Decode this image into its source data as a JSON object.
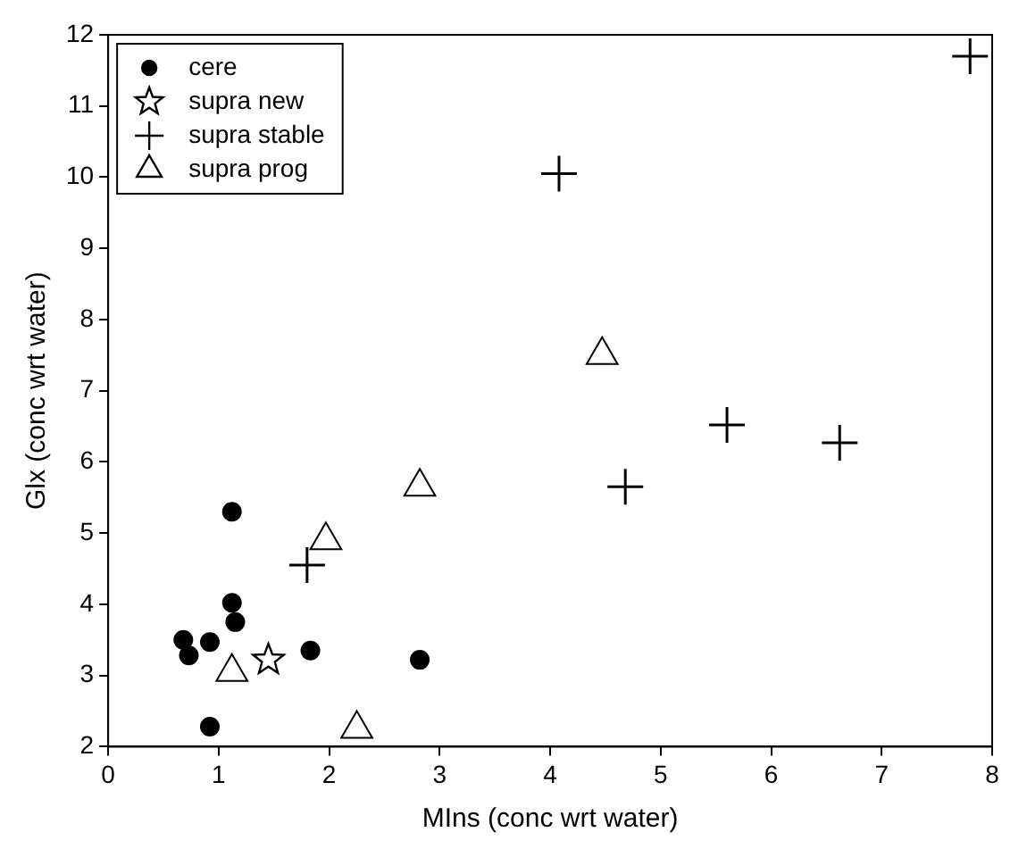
{
  "chart_data": {
    "type": "scatter",
    "xlabel": "MIns (conc wrt water)",
    "ylabel": "Glx (conc wrt water)",
    "xlim": [
      0,
      8
    ],
    "xticks": [
      0,
      1,
      2,
      3,
      4,
      5,
      6,
      7,
      8
    ],
    "ylim": [
      2,
      12
    ],
    "yticks": [
      2,
      3,
      4,
      5,
      6,
      7,
      8,
      9,
      10,
      11,
      12
    ],
    "grid": false,
    "legend": "top left",
    "series": [
      {
        "name": "cere",
        "color": "#000000",
        "marker": "circle",
        "x": [
          0.68,
          0.73,
          0.92,
          1.12,
          1.15,
          1.12,
          0.92,
          1.83,
          2.82
        ],
        "values": [
          3.5,
          3.28,
          3.47,
          4.02,
          3.75,
          5.3,
          2.28,
          3.35,
          3.22
        ]
      },
      {
        "name": "supra new",
        "color": "#000000",
        "marker": "star",
        "x": [
          1.45
        ],
        "values": [
          3.22
        ]
      },
      {
        "name": "supra stable",
        "color": "#000000",
        "marker": "cross",
        "x": [
          1.8,
          4.08,
          4.68,
          5.6,
          6.62,
          7.8
        ],
        "values": [
          4.55,
          10.05,
          5.65,
          6.52,
          6.27,
          11.7
        ]
      },
      {
        "name": "supra prog",
        "color": "#000000",
        "marker": "triangle",
        "x": [
          1.12,
          1.97,
          2.82,
          4.47,
          2.25
        ],
        "values": [
          3.05,
          4.9,
          5.65,
          7.5,
          2.25
        ]
      }
    ]
  }
}
